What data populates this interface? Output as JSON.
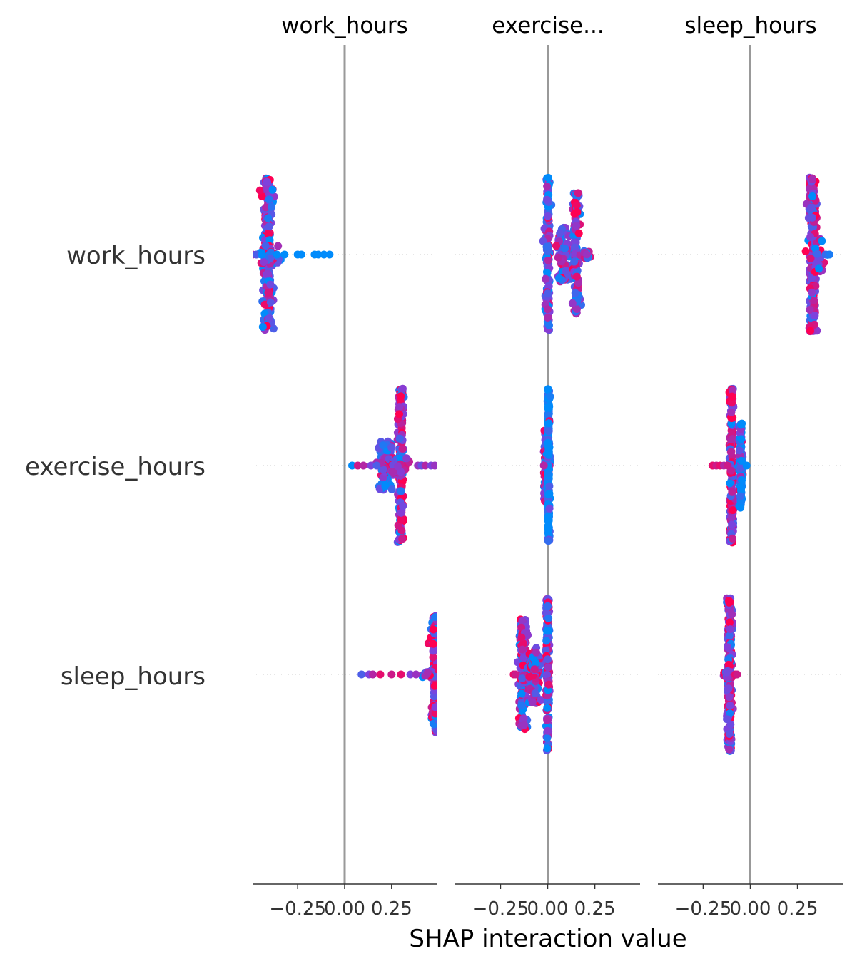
{
  "chart_data": {
    "type": "scatter",
    "subtype": "shap-interaction-beeswarm-matrix",
    "xlabel": "SHAP interaction value",
    "features": [
      "work_hours",
      "exercise_hours",
      "sleep_hours"
    ],
    "column_titles": [
      "work_hours",
      "exercise...",
      "sleep_hours"
    ],
    "xlim": [
      -0.49,
      0.49
    ],
    "xticks": [
      -0.25,
      0.0,
      0.25
    ],
    "xtick_labels": [
      "−0.25",
      "0.00",
      "0.25"
    ],
    "colormap": {
      "low": "#008bfb",
      "high": "#ff0052"
    },
    "zero_line_color": "#999999",
    "cells": [
      {
        "row": "work_hours",
        "col": "work_hours",
        "clusters": [
          {
            "x": -0.41,
            "spread": 0.012,
            "count": 240,
            "height": 1.0,
            "mix": 0.5
          },
          {
            "x": -0.41,
            "spread": 0.03,
            "count": 40,
            "height": 0.12,
            "mix": 0.5
          }
        ],
        "outliers": [
          {
            "x": -0.49,
            "v": 0.6
          },
          {
            "x": -0.47,
            "v": 0.3
          },
          {
            "x": -0.44,
            "v": 0.0
          },
          {
            "x": -0.36,
            "v": 0.0
          },
          {
            "x": -0.32,
            "v": 0.0
          },
          {
            "x": -0.25,
            "v": 0.0
          },
          {
            "x": -0.23,
            "v": 0.0
          },
          {
            "x": -0.16,
            "v": 0.0
          },
          {
            "x": -0.14,
            "v": 0.0
          },
          {
            "x": -0.11,
            "v": 0.0
          },
          {
            "x": -0.08,
            "v": 0.0
          }
        ]
      },
      {
        "row": "work_hours",
        "col": "exercise_hours",
        "clusters": [
          {
            "x": 0.0,
            "spread": 0.006,
            "count": 150,
            "height": 1.0,
            "mix": 0.3
          },
          {
            "x": 0.08,
            "spread": 0.02,
            "count": 80,
            "height": 0.35,
            "mix": 0.5
          },
          {
            "x": 0.15,
            "spread": 0.01,
            "count": 110,
            "height": 0.8,
            "mix": 0.5
          },
          {
            "x": 0.2,
            "spread": 0.015,
            "count": 15,
            "height": 0.05,
            "mix": 0.5
          }
        ],
        "outliers": []
      },
      {
        "row": "work_hours",
        "col": "sleep_hours",
        "clusters": [
          {
            "x": 0.33,
            "spread": 0.01,
            "count": 200,
            "height": 1.0,
            "mix": 0.6
          },
          {
            "x": 0.36,
            "spread": 0.02,
            "count": 40,
            "height": 0.25,
            "mix": 0.5
          }
        ],
        "outliers": [
          {
            "x": 0.4,
            "v": 0.2
          },
          {
            "x": 0.42,
            "v": 0.1
          }
        ]
      },
      {
        "row": "exercise_hours",
        "col": "work_hours",
        "clusters": [
          {
            "x": 0.3,
            "spread": 0.007,
            "count": 220,
            "height": 1.0,
            "mix": 0.6
          },
          {
            "x": 0.22,
            "spread": 0.02,
            "count": 80,
            "height": 0.32,
            "mix": 0.2
          },
          {
            "x": 0.26,
            "spread": 0.03,
            "count": 60,
            "height": 0.1,
            "mix": 0.6
          }
        ],
        "outliers": [
          {
            "x": 0.04,
            "v": 0.0
          },
          {
            "x": 0.07,
            "v": 0.8
          },
          {
            "x": 0.1,
            "v": 0.7
          },
          {
            "x": 0.14,
            "v": 0.5
          },
          {
            "x": 0.17,
            "v": 0.3
          },
          {
            "x": 0.39,
            "v": 0.6
          },
          {
            "x": 0.41,
            "v": 0.4
          },
          {
            "x": 0.43,
            "v": 0.7
          },
          {
            "x": 0.46,
            "v": 0.5
          },
          {
            "x": 0.48,
            "v": 0.6
          }
        ]
      },
      {
        "row": "exercise_hours",
        "col": "exercise_hours",
        "clusters": [
          {
            "x": -0.01,
            "spread": 0.005,
            "count": 80,
            "height": 0.48,
            "mix": 0.5
          },
          {
            "x": 0.005,
            "spread": 0.003,
            "count": 200,
            "height": 1.0,
            "mix": 0.0
          }
        ],
        "outliers": [
          {
            "x": -0.02,
            "v": 0.7
          }
        ]
      },
      {
        "row": "exercise_hours",
        "col": "sleep_hours",
        "clusters": [
          {
            "x": -0.1,
            "spread": 0.005,
            "count": 180,
            "height": 1.0,
            "mix": 0.65
          },
          {
            "x": -0.05,
            "spread": 0.004,
            "count": 120,
            "height": 0.55,
            "mix": 0.05
          }
        ],
        "outliers": [
          {
            "x": -0.2,
            "v": 0.9
          },
          {
            "x": -0.18,
            "v": 0.8
          },
          {
            "x": -0.16,
            "v": 0.9
          },
          {
            "x": -0.14,
            "v": 0.7
          },
          {
            "x": -0.12,
            "v": 0.8
          },
          {
            "x": -0.02,
            "v": 0.0
          }
        ]
      },
      {
        "row": "sleep_hours",
        "col": "work_hours",
        "clusters": [
          {
            "x": 0.48,
            "spread": 0.01,
            "count": 120,
            "height": 0.76,
            "mix": 0.6
          },
          {
            "x": 0.44,
            "spread": 0.02,
            "count": 30,
            "height": 0.04,
            "mix": 0.6
          }
        ],
        "outliers": [
          {
            "x": 0.09,
            "v": 0.3
          },
          {
            "x": 0.13,
            "v": 0.5
          },
          {
            "x": 0.15,
            "v": 0.7
          },
          {
            "x": 0.19,
            "v": 0.9
          },
          {
            "x": 0.25,
            "v": 0.8
          },
          {
            "x": 0.3,
            "v": 0.9
          },
          {
            "x": 0.35,
            "v": 0.5
          },
          {
            "x": 0.38,
            "v": 0.6
          }
        ]
      },
      {
        "row": "sleep_hours",
        "col": "exercise_hours",
        "clusters": [
          {
            "x": -0.13,
            "spread": 0.01,
            "count": 160,
            "height": 0.72,
            "mix": 0.55
          },
          {
            "x": -0.07,
            "spread": 0.015,
            "count": 80,
            "height": 0.38,
            "mix": 0.55
          },
          {
            "x": 0.0,
            "spread": 0.005,
            "count": 150,
            "height": 1.0,
            "mix": 0.5
          }
        ],
        "outliers": [
          {
            "x": -0.18,
            "v": 0.9
          },
          {
            "x": -0.17,
            "v": 0.8
          }
        ]
      },
      {
        "row": "sleep_hours",
        "col": "sleep_hours",
        "clusters": [
          {
            "x": -0.11,
            "spread": 0.006,
            "count": 200,
            "height": 1.0,
            "mix": 0.6
          },
          {
            "x": -0.12,
            "spread": 0.01,
            "count": 30,
            "height": 0.05,
            "mix": 0.5
          }
        ],
        "outliers": [
          {
            "x": -0.08,
            "v": 0.9
          },
          {
            "x": -0.07,
            "v": 0.8
          }
        ]
      }
    ]
  }
}
